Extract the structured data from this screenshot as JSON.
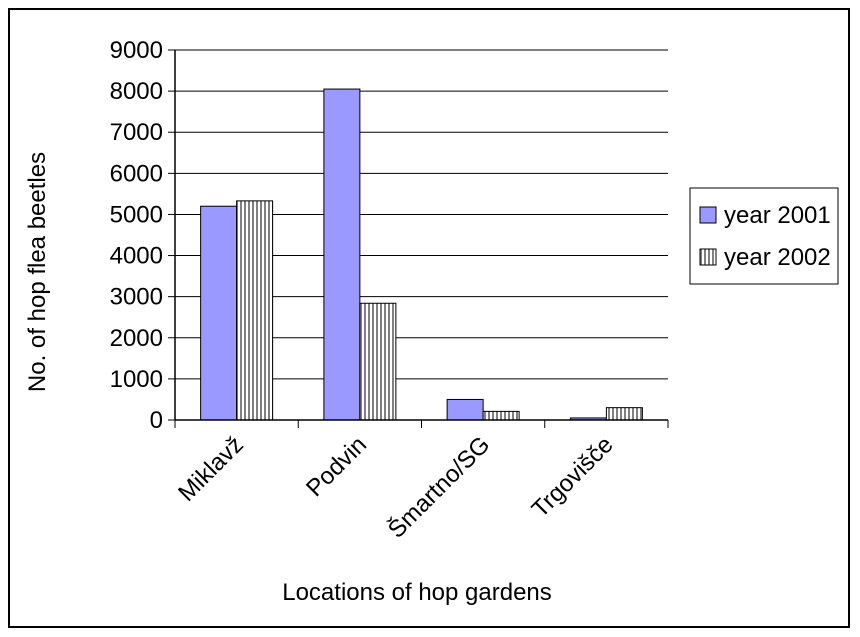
{
  "chart_data": {
    "type": "bar",
    "categories": [
      "Miklavž",
      "Podvin",
      "Šmartno/SG",
      "Trgovišče"
    ],
    "series": [
      {
        "name": "year 2001",
        "values": [
          5200,
          8050,
          500,
          50
        ],
        "color": "#9999ff",
        "pattern": "solid"
      },
      {
        "name": "year 2002",
        "values": [
          5330,
          2840,
          210,
          300
        ],
        "color": "#c0c0c0",
        "pattern": "vertical-stripes"
      }
    ],
    "title": "",
    "xlabel": "Locations of hop gardens",
    "ylabel": "No. of hop flea beetles",
    "ylim": [
      0,
      9000
    ],
    "yticks": [
      "0",
      "1000",
      "2000",
      "3000",
      "4000",
      "5000",
      "6000",
      "7000",
      "8000",
      "9000"
    ],
    "grid": true,
    "legend_position": "right"
  }
}
